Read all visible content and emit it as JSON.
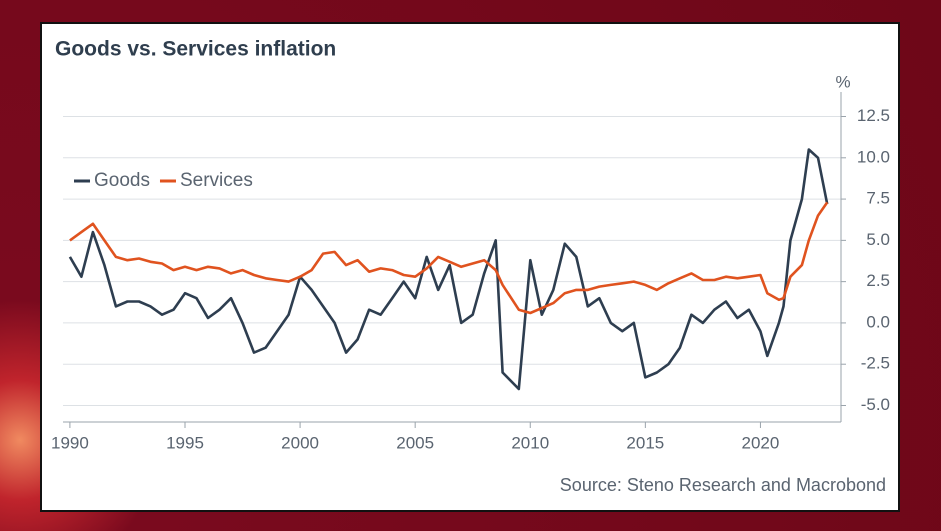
{
  "chart_data": {
    "type": "line",
    "title": "Goods vs. Services inflation",
    "y_label": "%",
    "source": "Source: Steno Research and Macrobond",
    "x": [
      1990.0,
      1990.5,
      1991.0,
      1991.5,
      1992.0,
      1992.5,
      1993.0,
      1993.5,
      1994.0,
      1994.5,
      1995.0,
      1995.5,
      1996.0,
      1996.5,
      1997.0,
      1997.5,
      1998.0,
      1998.5,
      1999.0,
      1999.5,
      2000.0,
      2000.5,
      2001.0,
      2001.5,
      2002.0,
      2002.5,
      2003.0,
      2003.5,
      2004.0,
      2004.5,
      2005.0,
      2005.5,
      2006.0,
      2006.5,
      2007.0,
      2007.5,
      2008.0,
      2008.5,
      2008.8,
      2009.5,
      2010.0,
      2010.5,
      2011.0,
      2011.5,
      2012.0,
      2012.5,
      2013.0,
      2013.5,
      2014.0,
      2014.5,
      2015.0,
      2015.5,
      2016.0,
      2016.5,
      2017.0,
      2017.5,
      2018.0,
      2018.5,
      2019.0,
      2019.5,
      2020.0,
      2020.3,
      2020.8,
      2021.0,
      2021.3,
      2021.8,
      2022.1,
      2022.5,
      2022.9
    ],
    "series": [
      {
        "name": "Goods",
        "color": "#2e3e50",
        "values": [
          4.0,
          2.8,
          5.5,
          3.5,
          1.0,
          1.3,
          1.3,
          1.0,
          0.5,
          0.8,
          1.8,
          1.5,
          0.3,
          0.8,
          1.5,
          0.0,
          -1.8,
          -1.5,
          -0.5,
          0.5,
          2.8,
          2.0,
          1.0,
          0.0,
          -1.8,
          -1.0,
          0.8,
          0.5,
          1.5,
          2.5,
          1.5,
          4.0,
          2.0,
          3.5,
          0.0,
          0.5,
          3.0,
          5.0,
          -3.0,
          -4.0,
          3.8,
          0.5,
          2.0,
          4.8,
          4.0,
          1.0,
          1.5,
          0.0,
          -0.5,
          0.0,
          -3.3,
          -3.0,
          -2.5,
          -1.5,
          0.5,
          0.0,
          0.8,
          1.3,
          0.3,
          0.8,
          -0.5,
          -2.0,
          0.0,
          1.0,
          5.0,
          7.5,
          10.5,
          10.0,
          7.2
        ]
      },
      {
        "name": "Services",
        "color": "#e0531f",
        "values": [
          5.0,
          5.5,
          6.0,
          5.0,
          4.0,
          3.8,
          3.9,
          3.7,
          3.6,
          3.2,
          3.4,
          3.2,
          3.4,
          3.3,
          3.0,
          3.2,
          2.9,
          2.7,
          2.6,
          2.5,
          2.8,
          3.2,
          4.2,
          4.3,
          3.5,
          3.8,
          3.1,
          3.3,
          3.2,
          2.9,
          2.8,
          3.3,
          4.0,
          3.7,
          3.4,
          3.6,
          3.8,
          3.2,
          2.3,
          0.8,
          0.6,
          0.9,
          1.2,
          1.8,
          2.0,
          2.0,
          2.2,
          2.3,
          2.4,
          2.5,
          2.3,
          2.0,
          2.4,
          2.7,
          3.0,
          2.6,
          2.6,
          2.8,
          2.7,
          2.8,
          2.9,
          1.8,
          1.4,
          1.5,
          2.8,
          3.5,
          5.0,
          6.5,
          7.3
        ]
      }
    ],
    "xlim": [
      1989.7,
      2023.5
    ],
    "xticks": [
      1990,
      1995,
      2000,
      2005,
      2010,
      2015,
      2020
    ],
    "ylim": [
      -6,
      13.5
    ],
    "yticks": [
      {
        "value": -5,
        "label": "-5.0"
      },
      -2.5,
      {
        "value": 0,
        "label": "0.0"
      },
      2.5,
      {
        "value": 5,
        "label": "5.0"
      },
      7.5,
      {
        "value": 10,
        "label": "10.0"
      },
      12.5
    ],
    "grid": true,
    "legend": "upper left"
  }
}
